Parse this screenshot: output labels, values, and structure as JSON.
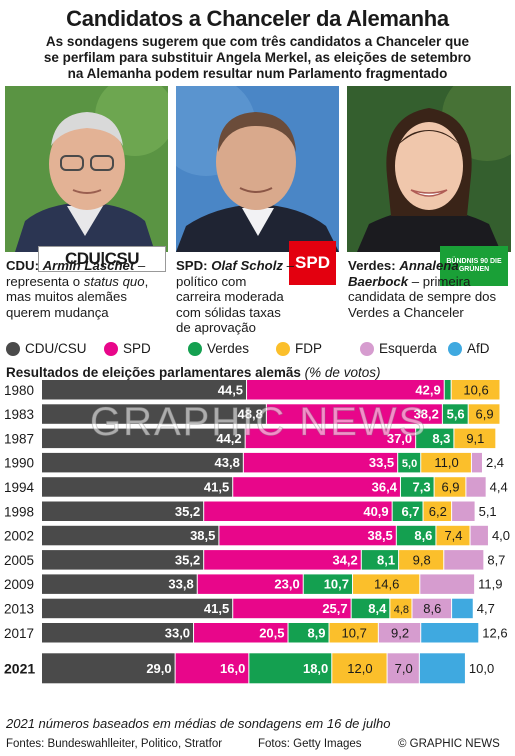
{
  "header": {
    "title": "Candidatos a Chanceler da Alemanha",
    "subtitle_lines": [
      "As sondagens sugerem que com três candidatos a Chanceler que",
      "se perfilam para substituir Angela Merkel, as eleições de setembro",
      "na Alemanha podem resultar num Parlamento fragmentado"
    ]
  },
  "candidates": [
    {
      "party": "CDU:",
      "name": "Armin Laschet",
      "desc_a": " – representa o ",
      "desc_em": "status quo",
      "desc_b": ", mas muitos alemães querem mudança",
      "logo": "CDU|CSU"
    },
    {
      "party": "SPD:",
      "name": "Olaf Scholz",
      "desc_a": " – político com carreira moderada com sólidas taxas de aprovação",
      "desc_em": "",
      "desc_b": "",
      "logo": "SPD"
    },
    {
      "party": "Verdes:",
      "name": "Annalena Baerbock",
      "desc_a": " – primeira candidata de sempre dos Verdes a Chanceler",
      "desc_em": "",
      "desc_b": "",
      "logo": "BÜNDNIS 90 DIE GRÜNEN"
    }
  ],
  "colors": {
    "cdu": "#4a4a4a",
    "spd": "#e8068a",
    "verdes": "#14a050",
    "fdp": "#fbbf2b",
    "esquerda": "#d69ccf",
    "afd": "#3fa9e0",
    "logo_red": "#e3000f",
    "logo_green": "#1aa037"
  },
  "results_title": "Resultados de eleições parlamentares alemãs",
  "results_unit": "(% de votos)",
  "chart_data": {
    "type": "bar",
    "stacked": true,
    "orientation": "horizontal",
    "categories": [
      "1980",
      "1983",
      "1987",
      "1990",
      "1994",
      "1998",
      "2002",
      "2005",
      "2009",
      "2013",
      "2017",
      "2021"
    ],
    "series": [
      {
        "name": "CDU/CSU",
        "values": [
          44.5,
          48.8,
          44.2,
          43.8,
          41.5,
          35.2,
          38.5,
          35.2,
          33.8,
          41.5,
          33.0,
          29.0
        ]
      },
      {
        "name": "SPD",
        "values": [
          42.9,
          38.2,
          37.0,
          33.5,
          36.4,
          40.9,
          38.5,
          34.2,
          23.0,
          25.7,
          20.5,
          16.0
        ]
      },
      {
        "name": "Verdes",
        "values": [
          1.5,
          5.6,
          8.3,
          5.0,
          7.3,
          6.7,
          8.6,
          8.1,
          10.7,
          8.4,
          8.9,
          18.0
        ]
      },
      {
        "name": "FDP",
        "values": [
          10.6,
          6.9,
          9.1,
          11.0,
          6.9,
          6.2,
          7.4,
          9.8,
          14.6,
          4.8,
          10.7,
          12.0
        ]
      },
      {
        "name": "Esquerda",
        "values": [
          null,
          null,
          null,
          2.4,
          4.4,
          5.1,
          4.0,
          8.7,
          11.9,
          8.6,
          9.2,
          7.0
        ]
      },
      {
        "name": "AfD",
        "values": [
          null,
          null,
          null,
          null,
          null,
          null,
          null,
          null,
          null,
          4.7,
          12.6,
          10.0
        ]
      }
    ],
    "value_labels": [
      [
        "44,5",
        "42,9",
        "1,5",
        "10,6",
        "",
        ""
      ],
      [
        "48,8",
        "38,2",
        "5,6",
        "6,9",
        "",
        ""
      ],
      [
        "44,2",
        "37,0",
        "8,3",
        "9,1",
        "",
        ""
      ],
      [
        "43,8",
        "33,5",
        "5,0",
        "11,0",
        "2,4",
        ""
      ],
      [
        "41,5",
        "36,4",
        "7,3",
        "6,9",
        "4,4",
        ""
      ],
      [
        "35,2",
        "40,9",
        "6,7",
        "6,2",
        "5,1",
        ""
      ],
      [
        "38,5",
        "38,5",
        "8,6",
        "7,4",
        "4,0",
        ""
      ],
      [
        "35,2",
        "34,2",
        "8,1",
        "9,8",
        "8,7",
        ""
      ],
      [
        "33,8",
        "23,0",
        "10,7",
        "14,6",
        "11,9",
        ""
      ],
      [
        "41,5",
        "25,7",
        "8,4",
        "4,8",
        "8,6",
        "4,7"
      ],
      [
        "33,0",
        "20,5",
        "8,9",
        "10,7",
        "9,2",
        "12,6"
      ],
      [
        "29,0",
        "16,0",
        "18,0",
        "12,0",
        "7,0",
        "10,0"
      ]
    ],
    "xlim": [
      0,
      100
    ]
  },
  "footnote": "2021 números baseados em médias de sondagens em 16 de julho",
  "footer": {
    "sources": "Fontes: Bundeswahlleiter, Politico, Stratfor",
    "photos": "Fotos: Getty Images",
    "credit": "© GRAPHIC NEWS"
  },
  "watermark": "GRAPHIC NEWS"
}
